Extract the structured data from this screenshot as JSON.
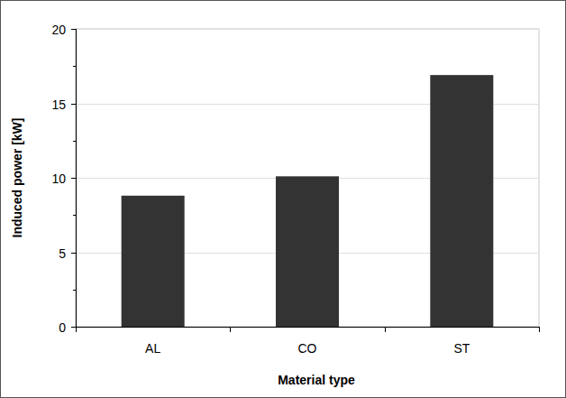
{
  "chart_data": {
    "type": "bar",
    "categories": [
      "AL",
      "CO",
      "ST"
    ],
    "values": [
      8.8,
      10.1,
      16.9
    ],
    "color": "#333333",
    "ylim": [
      0,
      20
    ],
    "yticks": [
      0,
      5,
      10,
      15,
      20
    ],
    "grid": true,
    "x_label": "Material type",
    "y_label": "Induced power [kW]"
  }
}
